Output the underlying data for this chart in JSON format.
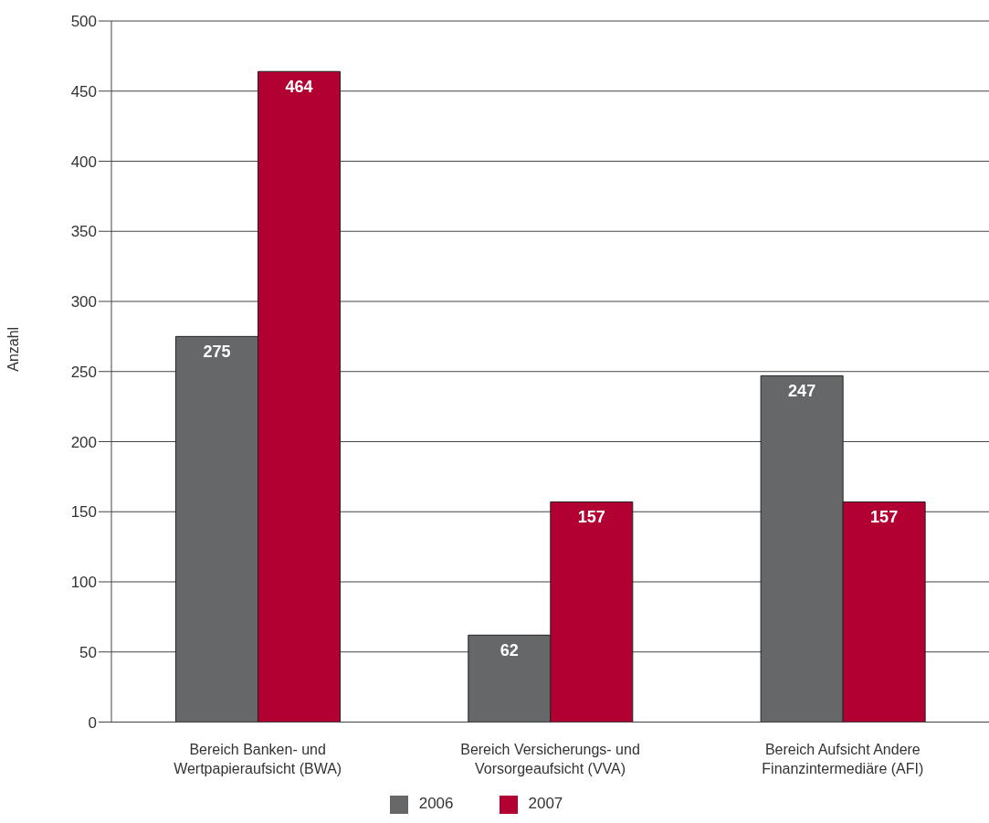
{
  "chart_data": {
    "type": "bar",
    "ylabel": "Anzahl",
    "categories": [
      "Bereich Banken- und Wertpapieraufsicht (BWA)",
      "Bereich Versicherungs- und Vorsorgeaufsicht (VVA)",
      "Bereich Aufsicht Andere Finanzintermediäre (AFI)"
    ],
    "series": [
      {
        "name": "2006",
        "color": "#666769",
        "values": [
          275,
          62,
          247
        ]
      },
      {
        "name": "2007",
        "color": "#b20032",
        "values": [
          464,
          157,
          157
        ]
      }
    ],
    "ylim": [
      0,
      500
    ],
    "yticks": [
      0,
      50,
      100,
      150,
      200,
      250,
      300,
      350,
      400,
      450,
      500
    ],
    "grid": "y",
    "legend": "bottom",
    "data_labels": true
  }
}
